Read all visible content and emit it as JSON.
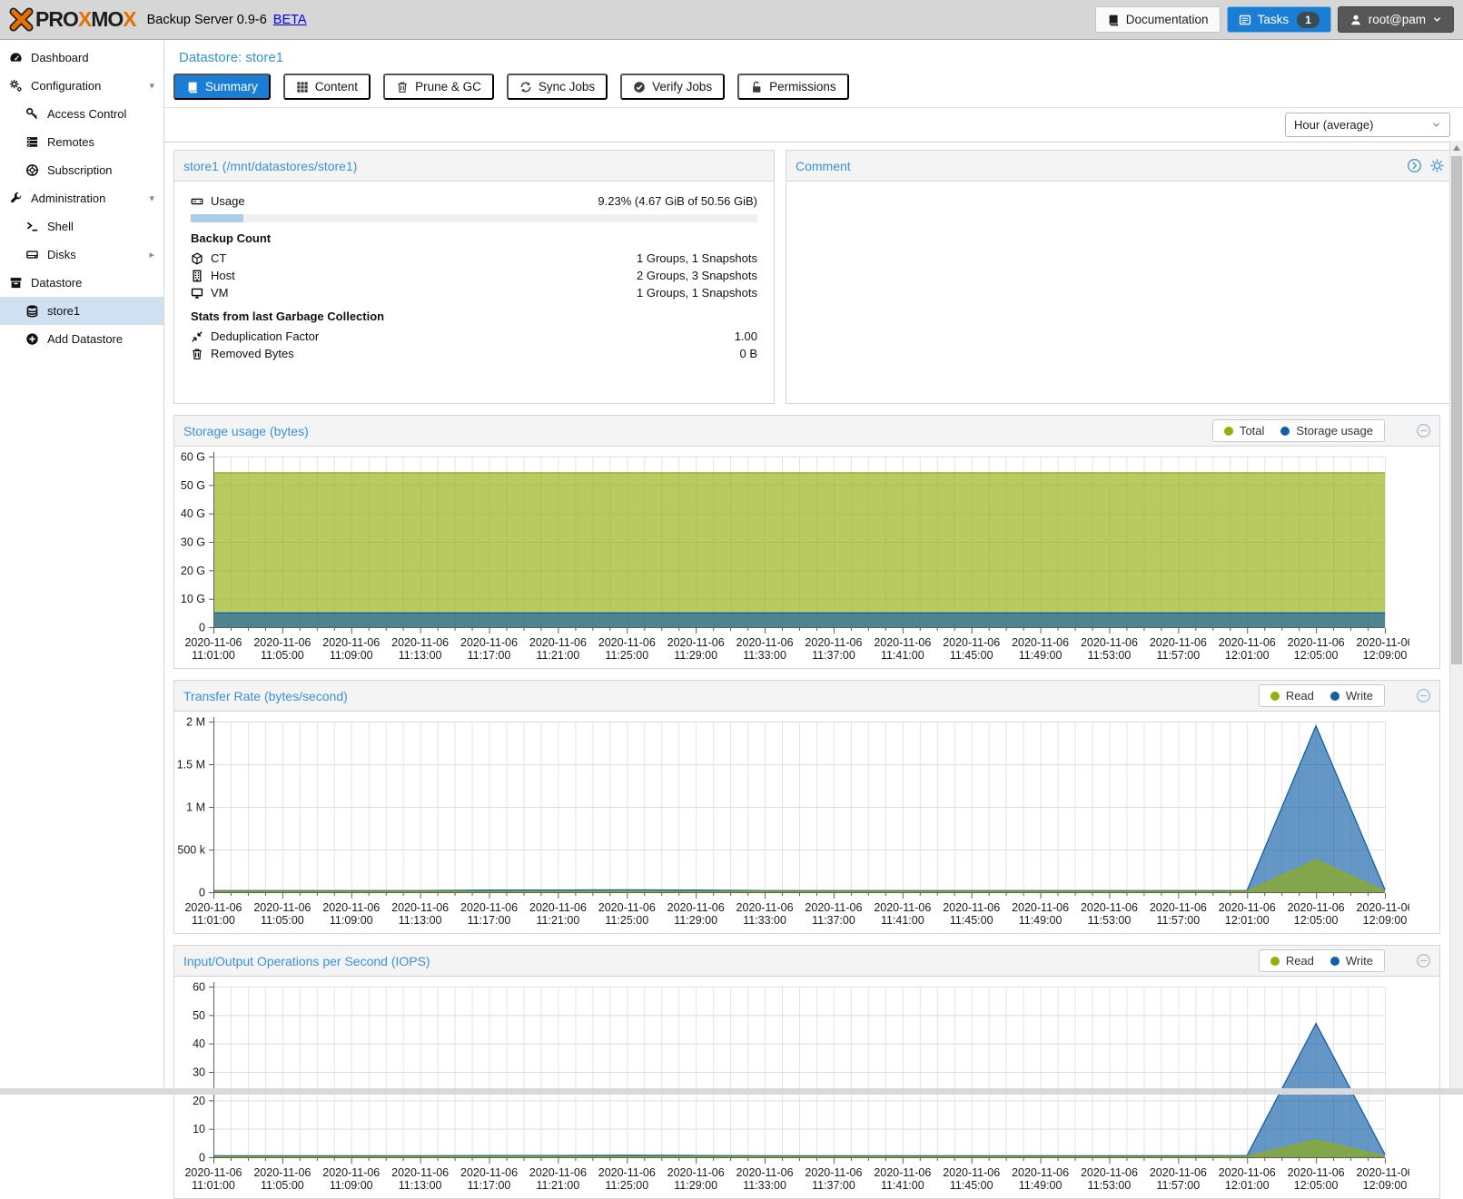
{
  "colors": {
    "brand_orange": "#e57000",
    "accent_blue": "#1a7fd4",
    "title_blue": "#3892d4",
    "selected_row": "#cfe0f1",
    "series_green": "#94ae0a",
    "series_blue": "#115fa6",
    "usage_bar_fill": "#abcdea"
  },
  "header": {
    "logo_parts": [
      {
        "text": "PRO",
        "tone": "dark"
      },
      {
        "text": "X",
        "tone": "orange"
      },
      {
        "text": "MO",
        "tone": "dark"
      },
      {
        "text": "X",
        "tone": "orange"
      }
    ],
    "subtitle": "Backup Server 0.9-6",
    "beta_label": "BETA",
    "buttons": {
      "documentation": "Documentation",
      "tasks": "Tasks",
      "tasks_badge": "1",
      "user": "root@pam"
    }
  },
  "sidebar": {
    "items": [
      {
        "label": "Dashboard",
        "icon": "gauge-icon",
        "level": 0
      },
      {
        "label": "Configuration",
        "icon": "gears-icon",
        "level": 0,
        "expand": "down"
      },
      {
        "label": "Access Control",
        "icon": "key-icon",
        "level": 1
      },
      {
        "label": "Remotes",
        "icon": "remotes-icon",
        "level": 1
      },
      {
        "label": "Subscription",
        "icon": "lifering-icon",
        "level": 1
      },
      {
        "label": "Administration",
        "icon": "wrench-icon",
        "level": 0,
        "expand": "down"
      },
      {
        "label": "Shell",
        "icon": "terminal-icon",
        "level": 1
      },
      {
        "label": "Disks",
        "icon": "disk-icon",
        "level": 1,
        "expand": "right"
      },
      {
        "label": "Datastore",
        "icon": "archive-icon",
        "level": 0
      },
      {
        "label": "store1",
        "icon": "database-icon",
        "level": 1,
        "selected": true
      },
      {
        "label": "Add Datastore",
        "icon": "plus-circle-icon",
        "level": 1
      }
    ]
  },
  "main": {
    "title": "Datastore: store1",
    "tabs": [
      {
        "label": "Summary",
        "icon": "book-icon",
        "active": true
      },
      {
        "label": "Content",
        "icon": "grid-icon"
      },
      {
        "label": "Prune & GC",
        "icon": "trash-icon"
      },
      {
        "label": "Sync Jobs",
        "icon": "sync-icon"
      },
      {
        "label": "Verify Jobs",
        "icon": "check-circle-icon"
      },
      {
        "label": "Permissions",
        "icon": "lock-icon"
      }
    ],
    "range_select": "Hour (average)"
  },
  "store_panel": {
    "title": "store1 (/mnt/datastores/store1)",
    "usage": {
      "icon": "hdd-icon",
      "label": "Usage",
      "value": "9.23% (4.67 GiB of 50.56 GiB)",
      "percent": 9.23
    },
    "sections": [
      {
        "heading": "Backup Count",
        "rows": [
          {
            "icon": "cube-icon",
            "label": "CT",
            "value": "1 Groups, 1 Snapshots"
          },
          {
            "icon": "building-icon",
            "label": "Host",
            "value": "2 Groups, 3 Snapshots"
          },
          {
            "icon": "desktop-icon",
            "label": "VM",
            "value": "1 Groups, 1 Snapshots"
          }
        ]
      },
      {
        "heading": "Stats from last Garbage Collection",
        "rows": [
          {
            "icon": "compress-icon",
            "label": "Deduplication Factor",
            "value": "1.00"
          },
          {
            "icon": "trash-icon",
            "label": "Removed Bytes",
            "value": "0 B"
          }
        ]
      }
    ]
  },
  "comment_panel": {
    "title": "Comment"
  },
  "chart_data": [
    {
      "type": "area",
      "title": "Storage usage (bytes)",
      "legend_position": "top-right",
      "grid": true,
      "x_date": "2020-11-06",
      "x_times": [
        "11:01:00",
        "11:05:00",
        "11:09:00",
        "11:13:00",
        "11:17:00",
        "11:21:00",
        "11:25:00",
        "11:29:00",
        "11:33:00",
        "11:37:00",
        "11:41:00",
        "11:45:00",
        "11:49:00",
        "11:53:00",
        "11:57:00",
        "12:01:00",
        "12:05:00",
        "12:09:00"
      ],
      "ylim": [
        0,
        60000000000
      ],
      "yticks": {
        "values": [
          0,
          10000000000,
          20000000000,
          30000000000,
          40000000000,
          50000000000,
          60000000000
        ],
        "labels": [
          "0",
          "10 G",
          "20 G",
          "30 G",
          "40 G",
          "50 G",
          "60 G"
        ]
      },
      "series": [
        {
          "name": "Total",
          "color": "#94ae0a",
          "values": [
            54290000000,
            54290000000,
            54290000000,
            54290000000,
            54290000000,
            54290000000,
            54290000000,
            54290000000,
            54290000000,
            54290000000,
            54290000000,
            54290000000,
            54290000000,
            54290000000,
            54290000000,
            54290000000,
            54290000000,
            54290000000
          ]
        },
        {
          "name": "Storage usage",
          "color": "#115fa6",
          "values": [
            5010000000,
            5010000000,
            5010000000,
            5010000000,
            5010000000,
            5010000000,
            5010000000,
            5010000000,
            5010000000,
            5010000000,
            5010000000,
            5010000000,
            5010000000,
            5010000000,
            5010000000,
            5010000000,
            5010000000,
            5010000000
          ]
        }
      ]
    },
    {
      "type": "area",
      "title": "Transfer Rate (bytes/second)",
      "legend_position": "top-right",
      "grid": true,
      "x_date": "2020-11-06",
      "x_times": [
        "11:01:00",
        "11:05:00",
        "11:09:00",
        "11:13:00",
        "11:17:00",
        "11:21:00",
        "11:25:00",
        "11:29:00",
        "11:33:00",
        "11:37:00",
        "11:41:00",
        "11:45:00",
        "11:49:00",
        "11:53:00",
        "11:57:00",
        "12:01:00",
        "12:05:00",
        "12:09:00"
      ],
      "ylim": [
        0,
        2000000
      ],
      "yticks": {
        "values": [
          0,
          500000,
          1000000,
          1500000,
          2000000
        ],
        "labels": [
          "0",
          "500 k",
          "1 M",
          "1.5 M",
          "2 M"
        ]
      },
      "series": [
        {
          "name": "Write",
          "color": "#115fa6",
          "values": [
            18000,
            18000,
            18000,
            18000,
            25000,
            26000,
            28000,
            24000,
            18000,
            18000,
            18000,
            18000,
            18000,
            18000,
            18000,
            20000,
            1950000,
            30000
          ]
        },
        {
          "name": "Read",
          "color": "#94ae0a",
          "values": [
            8000,
            8000,
            8000,
            8000,
            8000,
            8000,
            8000,
            8000,
            8000,
            8000,
            8000,
            8000,
            8000,
            8000,
            8000,
            9000,
            380000,
            9000
          ]
        }
      ]
    },
    {
      "type": "area",
      "title": "Input/Output Operations per Second (IOPS)",
      "legend_position": "top-right",
      "grid": true,
      "x_date": "2020-11-06",
      "x_times": [
        "11:01:00",
        "11:05:00",
        "11:09:00",
        "11:13:00",
        "11:17:00",
        "11:21:00",
        "11:25:00",
        "11:29:00",
        "11:33:00",
        "11:37:00",
        "11:41:00",
        "11:45:00",
        "11:49:00",
        "11:53:00",
        "11:57:00",
        "12:01:00",
        "12:05:00",
        "12:09:00"
      ],
      "ylim": [
        0,
        60
      ],
      "yticks": {
        "values": [
          0,
          10,
          20,
          30,
          40,
          50,
          60
        ],
        "labels": [
          "0",
          "10",
          "20",
          "30",
          "40",
          "50",
          "60"
        ]
      },
      "series": [
        {
          "name": "Write",
          "color": "#115fa6",
          "values": [
            0.5,
            0.5,
            0.5,
            0.5,
            0.6,
            0.6,
            0.7,
            0.6,
            0.5,
            0.5,
            0.5,
            0.5,
            0.5,
            0.5,
            0.5,
            0.6,
            47,
            1
          ]
        },
        {
          "name": "Read",
          "color": "#94ae0a",
          "values": [
            0.2,
            0.2,
            0.2,
            0.2,
            0.2,
            0.2,
            0.2,
            0.2,
            0.2,
            0.2,
            0.2,
            0.2,
            0.2,
            0.2,
            0.2,
            0.3,
            6,
            0.3
          ]
        }
      ]
    }
  ],
  "chart_legends": {
    "storage": [
      {
        "label": "Total",
        "color": "#94ae0a"
      },
      {
        "label": "Storage usage",
        "color": "#115fa6"
      }
    ],
    "io": [
      {
        "label": "Read",
        "color": "#94ae0a"
      },
      {
        "label": "Write",
        "color": "#115fa6"
      }
    ]
  }
}
